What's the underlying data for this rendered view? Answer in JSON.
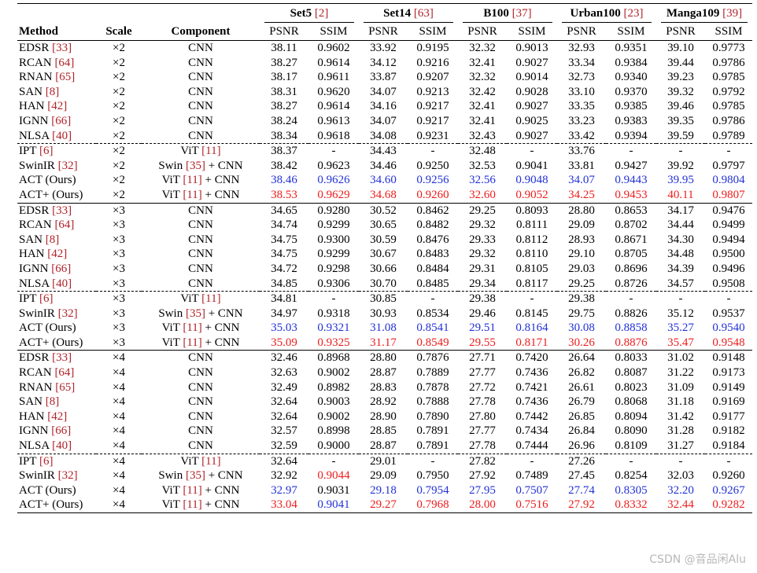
{
  "headers": {
    "method": "Method",
    "scale": "Scale",
    "component": "Component",
    "psnr": "PSNR",
    "ssim": "SSIM",
    "datasets": [
      {
        "name": "Set5",
        "ref": "[2]"
      },
      {
        "name": "Set14",
        "ref": "[63]"
      },
      {
        "name": "B100",
        "ref": "[37]"
      },
      {
        "name": "Urban100",
        "ref": "[23]"
      },
      {
        "name": "Manga109",
        "ref": "[39]"
      }
    ]
  },
  "groups": [
    {
      "rows": [
        {
          "m": "EDSR",
          "mr": "[33]",
          "s": "×2",
          "c": [
            {
              "t": "CNN"
            }
          ],
          "v": [
            "38.11",
            "0.9602",
            "33.92",
            "0.9195",
            "32.32",
            "0.9013",
            "32.93",
            "0.9351",
            "39.10",
            "0.9773"
          ],
          "k": "0000000000"
        },
        {
          "m": "RCAN",
          "mr": "[64]",
          "s": "×2",
          "c": [
            {
              "t": "CNN"
            }
          ],
          "v": [
            "38.27",
            "0.9614",
            "34.12",
            "0.9216",
            "32.41",
            "0.9027",
            "33.34",
            "0.9384",
            "39.44",
            "0.9786"
          ],
          "k": "0000000000"
        },
        {
          "m": "RNAN",
          "mr": "[65]",
          "s": "×2",
          "c": [
            {
              "t": "CNN"
            }
          ],
          "v": [
            "38.17",
            "0.9611",
            "33.87",
            "0.9207",
            "32.32",
            "0.9014",
            "32.73",
            "0.9340",
            "39.23",
            "0.9785"
          ],
          "k": "0000000000"
        },
        {
          "m": "SAN",
          "mr": "[8]",
          "s": "×2",
          "c": [
            {
              "t": "CNN"
            }
          ],
          "v": [
            "38.31",
            "0.9620",
            "34.07",
            "0.9213",
            "32.42",
            "0.9028",
            "33.10",
            "0.9370",
            "39.32",
            "0.9792"
          ],
          "k": "0000000000"
        },
        {
          "m": "HAN",
          "mr": "[42]",
          "s": "×2",
          "c": [
            {
              "t": "CNN"
            }
          ],
          "v": [
            "38.27",
            "0.9614",
            "34.16",
            "0.9217",
            "32.41",
            "0.9027",
            "33.35",
            "0.9385",
            "39.46",
            "0.9785"
          ],
          "k": "0000000000"
        },
        {
          "m": "IGNN",
          "mr": "[66]",
          "s": "×2",
          "c": [
            {
              "t": "CNN"
            }
          ],
          "v": [
            "38.24",
            "0.9613",
            "34.07",
            "0.9217",
            "32.41",
            "0.9025",
            "33.23",
            "0.9383",
            "39.35",
            "0.9786"
          ],
          "k": "0000000000"
        },
        {
          "m": "NLSA",
          "mr": "[40]",
          "s": "×2",
          "c": [
            {
              "t": "CNN"
            }
          ],
          "v": [
            "38.34",
            "0.9618",
            "34.08",
            "0.9231",
            "32.43",
            "0.9027",
            "33.42",
            "0.9394",
            "39.59",
            "0.9789"
          ],
          "k": "0000000000"
        }
      ]
    },
    {
      "dash": true,
      "rows": [
        {
          "m": "IPT",
          "mr": "[6]",
          "s": "×2",
          "c": [
            {
              "t": "ViT "
            },
            {
              "t": "[11]",
              "r": 1
            }
          ],
          "v": [
            "38.37",
            "-",
            "34.43",
            "-",
            "32.48",
            "-",
            "33.76",
            "-",
            "-",
            "-"
          ],
          "k": "0000000000"
        },
        {
          "m": "SwinIR",
          "mr": "[32]",
          "s": "×2",
          "c": [
            {
              "t": "Swin "
            },
            {
              "t": "[35]",
              "r": 1
            },
            {
              "t": " + CNN"
            }
          ],
          "v": [
            "38.42",
            "0.9623",
            "34.46",
            "0.9250",
            "32.53",
            "0.9041",
            "33.81",
            "0.9427",
            "39.92",
            "0.9797"
          ],
          "k": "0000000000"
        },
        {
          "m": "ACT (Ours)",
          "mr": "",
          "s": "×2",
          "c": [
            {
              "t": "ViT "
            },
            {
              "t": "[11]",
              "r": 1
            },
            {
              "t": " + CNN"
            }
          ],
          "v": [
            "38.46",
            "0.9626",
            "34.60",
            "0.9256",
            "32.56",
            "0.9048",
            "34.07",
            "0.9443",
            "39.95",
            "0.9804"
          ],
          "k": "bbbbbbbbbb"
        },
        {
          "m": "ACT+ (Ours)",
          "mr": "",
          "s": "×2",
          "c": [
            {
              "t": "ViT "
            },
            {
              "t": "[11]",
              "r": 1
            },
            {
              "t": " + CNN"
            }
          ],
          "v": [
            "38.53",
            "0.9629",
            "34.68",
            "0.9260",
            "32.60",
            "0.9052",
            "34.25",
            "0.9453",
            "40.11",
            "0.9807"
          ],
          "k": "rrrrrrrrrr"
        }
      ]
    },
    {
      "rows": [
        {
          "m": "EDSR",
          "mr": "[33]",
          "s": "×3",
          "c": [
            {
              "t": "CNN"
            }
          ],
          "v": [
            "34.65",
            "0.9280",
            "30.52",
            "0.8462",
            "29.25",
            "0.8093",
            "28.80",
            "0.8653",
            "34.17",
            "0.9476"
          ],
          "k": "0000000000"
        },
        {
          "m": "RCAN",
          "mr": "[64]",
          "s": "×3",
          "c": [
            {
              "t": "CNN"
            }
          ],
          "v": [
            "34.74",
            "0.9299",
            "30.65",
            "0.8482",
            "29.32",
            "0.8111",
            "29.09",
            "0.8702",
            "34.44",
            "0.9499"
          ],
          "k": "0000000000"
        },
        {
          "m": "SAN",
          "mr": "[8]",
          "s": "×3",
          "c": [
            {
              "t": "CNN"
            }
          ],
          "v": [
            "34.75",
            "0.9300",
            "30.59",
            "0.8476",
            "29.33",
            "0.8112",
            "28.93",
            "0.8671",
            "34.30",
            "0.9494"
          ],
          "k": "0000000000"
        },
        {
          "m": "HAN",
          "mr": "[42]",
          "s": "×3",
          "c": [
            {
              "t": "CNN"
            }
          ],
          "v": [
            "34.75",
            "0.9299",
            "30.67",
            "0.8483",
            "29.32",
            "0.8110",
            "29.10",
            "0.8705",
            "34.48",
            "0.9500"
          ],
          "k": "0000000000"
        },
        {
          "m": "IGNN",
          "mr": "[66]",
          "s": "×3",
          "c": [
            {
              "t": "CNN"
            }
          ],
          "v": [
            "34.72",
            "0.9298",
            "30.66",
            "0.8484",
            "29.31",
            "0.8105",
            "29.03",
            "0.8696",
            "34.39",
            "0.9496"
          ],
          "k": "0000000000"
        },
        {
          "m": "NLSA",
          "mr": "[40]",
          "s": "×3",
          "c": [
            {
              "t": "CNN"
            }
          ],
          "v": [
            "34.85",
            "0.9306",
            "30.70",
            "0.8485",
            "29.34",
            "0.8117",
            "29.25",
            "0.8726",
            "34.57",
            "0.9508"
          ],
          "k": "0000000000"
        }
      ]
    },
    {
      "dash": true,
      "rows": [
        {
          "m": "IPT",
          "mr": "[6]",
          "s": "×3",
          "c": [
            {
              "t": "ViT "
            },
            {
              "t": "[11]",
              "r": 1
            }
          ],
          "v": [
            "34.81",
            "-",
            "30.85",
            "-",
            "29.38",
            "-",
            "29.38",
            "-",
            "-",
            "-"
          ],
          "k": "0000000000"
        },
        {
          "m": "SwinIR",
          "mr": "[32]",
          "s": "×3",
          "c": [
            {
              "t": "Swin "
            },
            {
              "t": "[35]",
              "r": 1
            },
            {
              "t": " + CNN"
            }
          ],
          "v": [
            "34.97",
            "0.9318",
            "30.93",
            "0.8534",
            "29.46",
            "0.8145",
            "29.75",
            "0.8826",
            "35.12",
            "0.9537"
          ],
          "k": "0000000000"
        },
        {
          "m": "ACT (Ours)",
          "mr": "",
          "s": "×3",
          "c": [
            {
              "t": "ViT "
            },
            {
              "t": "[11]",
              "r": 1
            },
            {
              "t": " + CNN"
            }
          ],
          "v": [
            "35.03",
            "0.9321",
            "31.08",
            "0.8541",
            "29.51",
            "0.8164",
            "30.08",
            "0.8858",
            "35.27",
            "0.9540"
          ],
          "k": "bbbbbbbbbb"
        },
        {
          "m": "ACT+ (Ours)",
          "mr": "",
          "s": "×3",
          "c": [
            {
              "t": "ViT "
            },
            {
              "t": "[11]",
              "r": 1
            },
            {
              "t": " + CNN"
            }
          ],
          "v": [
            "35.09",
            "0.9325",
            "31.17",
            "0.8549",
            "29.55",
            "0.8171",
            "30.26",
            "0.8876",
            "35.47",
            "0.9548"
          ],
          "k": "rrrrrrrrrr"
        }
      ]
    },
    {
      "rows": [
        {
          "m": "EDSR",
          "mr": "[33]",
          "s": "×4",
          "c": [
            {
              "t": "CNN"
            }
          ],
          "v": [
            "32.46",
            "0.8968",
            "28.80",
            "0.7876",
            "27.71",
            "0.7420",
            "26.64",
            "0.8033",
            "31.02",
            "0.9148"
          ],
          "k": "0000000000"
        },
        {
          "m": "RCAN",
          "mr": "[64]",
          "s": "×4",
          "c": [
            {
              "t": "CNN"
            }
          ],
          "v": [
            "32.63",
            "0.9002",
            "28.87",
            "0.7889",
            "27.77",
            "0.7436",
            "26.82",
            "0.8087",
            "31.22",
            "0.9173"
          ],
          "k": "0000000000"
        },
        {
          "m": "RNAN",
          "mr": "[65]",
          "s": "×4",
          "c": [
            {
              "t": "CNN"
            }
          ],
          "v": [
            "32.49",
            "0.8982",
            "28.83",
            "0.7878",
            "27.72",
            "0.7421",
            "26.61",
            "0.8023",
            "31.09",
            "0.9149"
          ],
          "k": "0000000000"
        },
        {
          "m": "SAN",
          "mr": "[8]",
          "s": "×4",
          "c": [
            {
              "t": "CNN"
            }
          ],
          "v": [
            "32.64",
            "0.9003",
            "28.92",
            "0.7888",
            "27.78",
            "0.7436",
            "26.79",
            "0.8068",
            "31.18",
            "0.9169"
          ],
          "k": "0000000000"
        },
        {
          "m": "HAN",
          "mr": "[42]",
          "s": "×4",
          "c": [
            {
              "t": "CNN"
            }
          ],
          "v": [
            "32.64",
            "0.9002",
            "28.90",
            "0.7890",
            "27.80",
            "0.7442",
            "26.85",
            "0.8094",
            "31.42",
            "0.9177"
          ],
          "k": "0000000000"
        },
        {
          "m": "IGNN",
          "mr": "[66]",
          "s": "×4",
          "c": [
            {
              "t": "CNN"
            }
          ],
          "v": [
            "32.57",
            "0.8998",
            "28.85",
            "0.7891",
            "27.77",
            "0.7434",
            "26.84",
            "0.8090",
            "31.28",
            "0.9182"
          ],
          "k": "0000000000"
        },
        {
          "m": "NLSA",
          "mr": "[40]",
          "s": "×4",
          "c": [
            {
              "t": "CNN"
            }
          ],
          "v": [
            "32.59",
            "0.9000",
            "28.87",
            "0.7891",
            "27.78",
            "0.7444",
            "26.96",
            "0.8109",
            "31.27",
            "0.9184"
          ],
          "k": "0000000000"
        }
      ]
    },
    {
      "dash": true,
      "last": true,
      "rows": [
        {
          "m": "IPT",
          "mr": "[6]",
          "s": "×4",
          "c": [
            {
              "t": "ViT "
            },
            {
              "t": "[11]",
              "r": 1
            }
          ],
          "v": [
            "32.64",
            "-",
            "29.01",
            "-",
            "27.82",
            "-",
            "27.26",
            "-",
            "-",
            "-"
          ],
          "k": "0000000000"
        },
        {
          "m": "SwinIR",
          "mr": "[32]",
          "s": "×4",
          "c": [
            {
              "t": "Swin "
            },
            {
              "t": "[35]",
              "r": 1
            },
            {
              "t": " + CNN"
            }
          ],
          "v": [
            "32.92",
            "0.9044",
            "29.09",
            "0.7950",
            "27.92",
            "0.7489",
            "27.45",
            "0.8254",
            "32.03",
            "0.9260"
          ],
          "k": "0r00000000"
        },
        {
          "m": "ACT (Ours)",
          "mr": "",
          "s": "×4",
          "c": [
            {
              "t": "ViT "
            },
            {
              "t": "[11]",
              "r": 1
            },
            {
              "t": " + CNN"
            }
          ],
          "v": [
            "32.97",
            "0.9031",
            "29.18",
            "0.7954",
            "27.95",
            "0.7507",
            "27.74",
            "0.8305",
            "32.20",
            "0.9267"
          ],
          "k": "b0bbbbbbbb"
        },
        {
          "m": "ACT+ (Ours)",
          "mr": "",
          "s": "×4",
          "c": [
            {
              "t": "ViT "
            },
            {
              "t": "[11]",
              "r": 1
            },
            {
              "t": " + CNN"
            }
          ],
          "v": [
            "33.04",
            "0.9041",
            "29.27",
            "0.7968",
            "28.00",
            "0.7516",
            "27.92",
            "0.8332",
            "32.44",
            "0.9282"
          ],
          "k": "rbrrrrrrrr"
        }
      ]
    }
  ],
  "watermark": "CSDN @音品闲Alu"
}
